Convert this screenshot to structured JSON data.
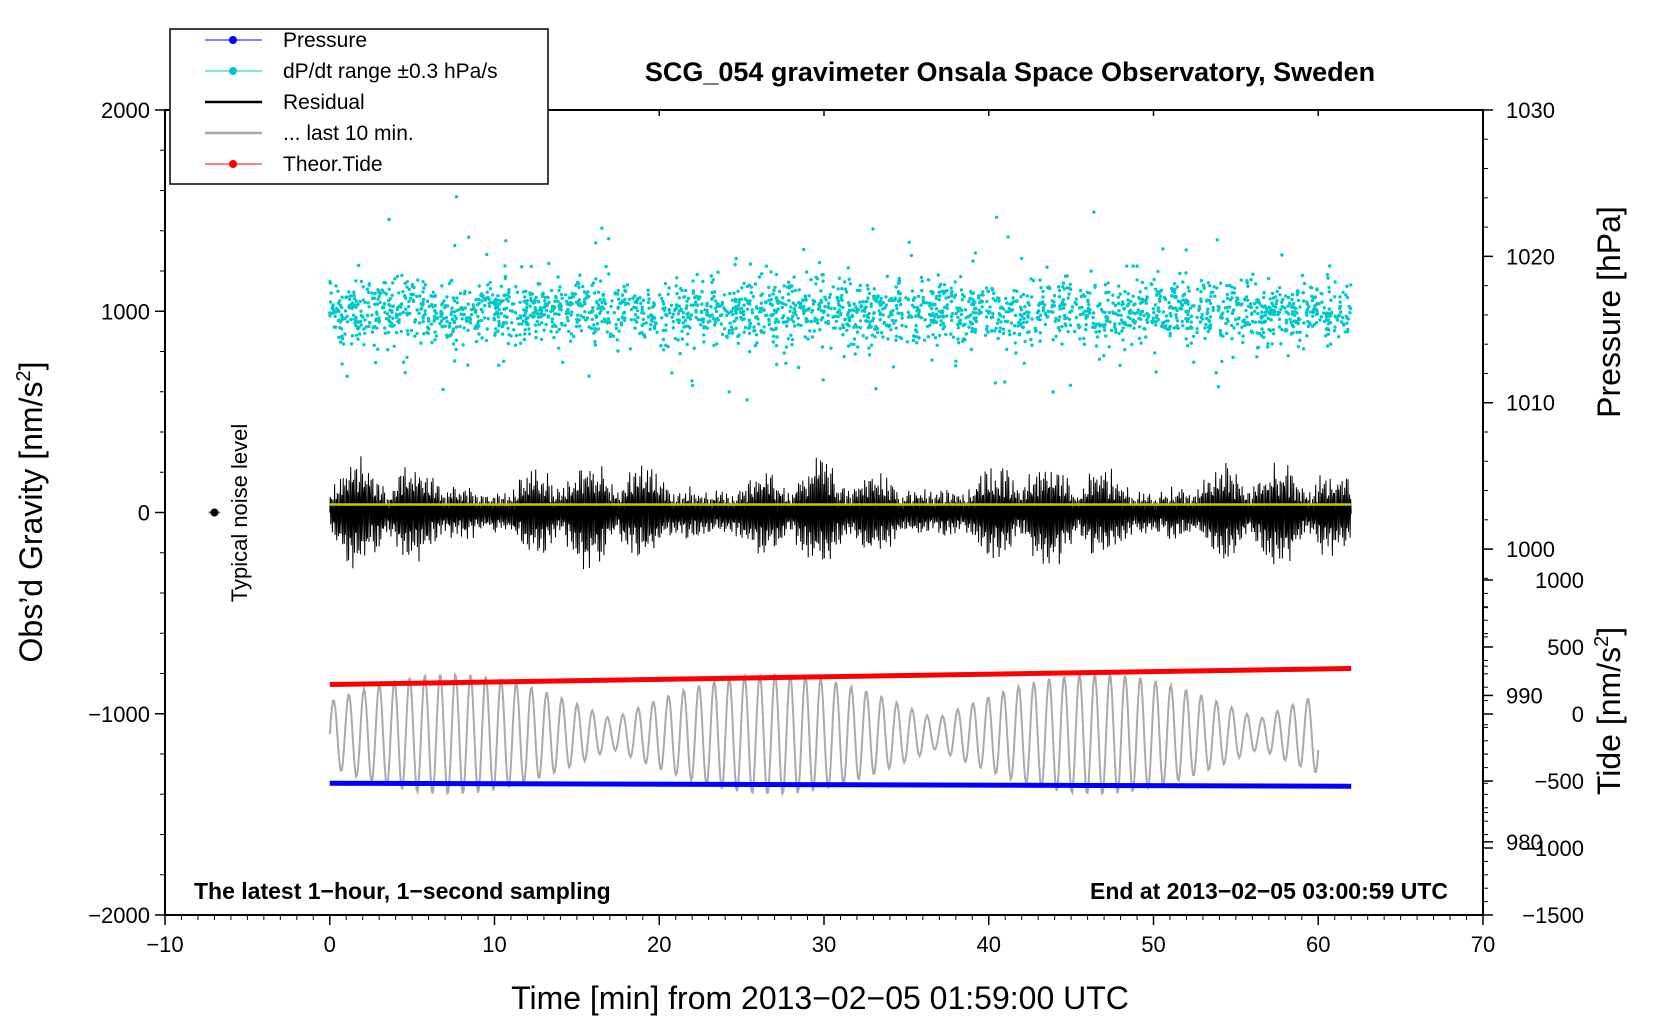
{
  "chart_data": {
    "type": "line",
    "title": "SCG_054 gravimeter Onsala Space Observatory, Sweden",
    "xlabel": "Time [min] from 2013−02−05 01:59:00 UTC",
    "ylabel_left": "Obs’d Gravity [nm/s",
    "ylabel_left_sup": "2",
    "ylabel_left_end": "]",
    "ylabel_right_pressure": "Pressure [hPa]",
    "ylabel_right_tide": "Tide [nm/s",
    "ylabel_right_tide_sup": "2",
    "ylabel_right_tide_end": "]",
    "footnote_left": "The latest 1−hour, 1−second sampling",
    "footnote_right": "End at 2013−02−05 03:00:59 UTC",
    "noise_label": "Typical noise level",
    "xlim": [
      -10,
      70
    ],
    "ylim_left": [
      -2000,
      2000
    ],
    "pressure_range": [
      975,
      1030
    ],
    "tide_range": [
      -1500,
      1000
    ],
    "x_ticks": [
      -10,
      0,
      10,
      20,
      30,
      40,
      50,
      60,
      70
    ],
    "x_tick_labels": [
      "−10",
      "0",
      "10",
      "20",
      "30",
      "40",
      "50",
      "60",
      "70"
    ],
    "y_left_ticks": [
      2000,
      1000,
      0,
      -1000,
      -2000
    ],
    "y_left_tick_labels": [
      "2000",
      "1000",
      "0",
      "−1000",
      "−2000"
    ],
    "pressure_ticks": [
      1030,
      1020,
      1010,
      1000,
      990,
      980
    ],
    "pressure_tick_labels": [
      "1030",
      "1020",
      "1010",
      "1000",
      "990",
      "980"
    ],
    "tide_ticks": [
      1000,
      500,
      0,
      -500,
      -1000,
      -1500
    ],
    "tide_tick_labels": [
      "1000",
      "500",
      "0",
      "−500",
      "−1000",
      "−1500"
    ],
    "legend": [
      {
        "name": "Pressure",
        "color": "#0000ff",
        "marker": true
      },
      {
        "name": "dP/dt range ±0.3 hPa/s",
        "color": "#00c8c8",
        "marker": true
      },
      {
        "name": "Residual",
        "color": "#000000",
        "marker": false
      },
      {
        "name": "... last 10 min.",
        "color": "#aaaaaa",
        "marker": false
      },
      {
        "name": "Theor.Tide",
        "color": "#ff0000",
        "marker": true
      }
    ],
    "series": [
      {
        "name": "Pressure",
        "axis": "pressure",
        "x": [
          0,
          62
        ],
        "values": [
          984.0,
          983.8
        ]
      },
      {
        "name": "dP/dt range ±0.3 hPa/s",
        "axis": "left",
        "x_range": [
          0,
          62
        ],
        "center": 1000,
        "spread": 110
      },
      {
        "name": "Residual",
        "axis": "left",
        "x_range": [
          0,
          62
        ],
        "center": 0,
        "typical_amplitude": 300,
        "max_amplitude": 550
      },
      {
        "name": "Residual mean",
        "axis": "left",
        "x": [
          0,
          62
        ],
        "values": [
          40,
          40
        ]
      },
      {
        "name": "... last 10 min.",
        "axis": "tide",
        "x_range": [
          0,
          60
        ],
        "center": -150,
        "typical_amplitude": 450,
        "max_amplitude": 900
      },
      {
        "name": "Theor.Tide",
        "axis": "tide",
        "x": [
          0,
          62
        ],
        "values": [
          220,
          340
        ]
      }
    ],
    "noise_level": {
      "x": -7,
      "y": 0,
      "error": 20
    }
  },
  "colors": {
    "pressure": "#0000ff",
    "dpdt": "#00c8c8",
    "residual": "#000000",
    "residual_mean": "#c8c800",
    "last10": "#aaaaaa",
    "tide": "#ff0000"
  }
}
